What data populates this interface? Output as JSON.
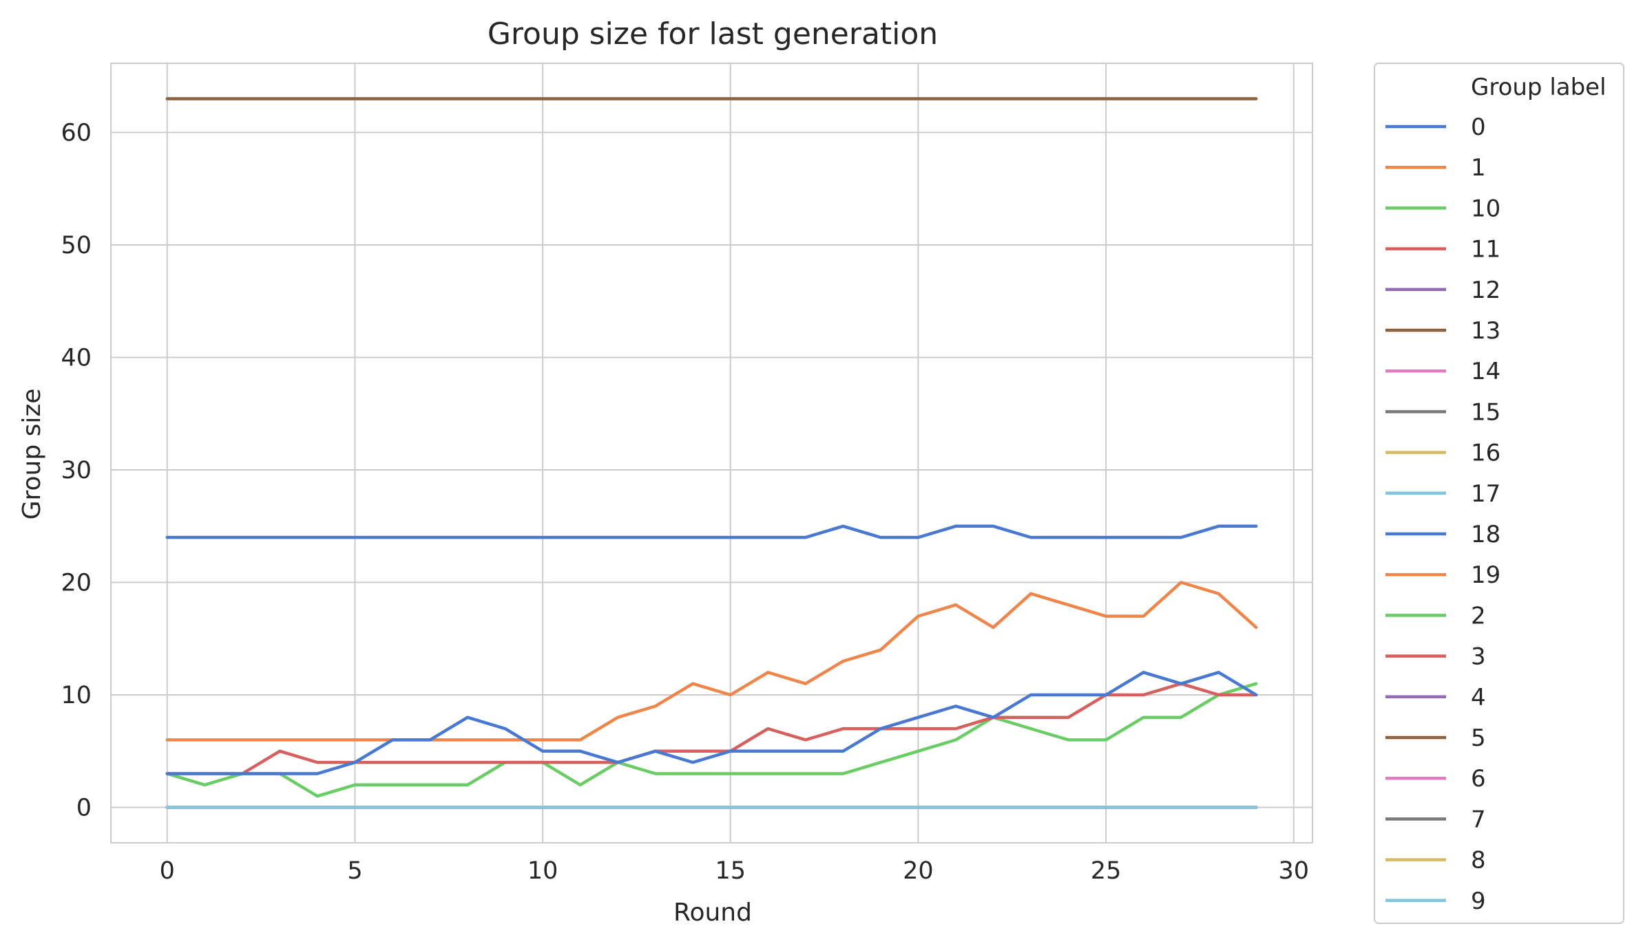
{
  "chart_data": {
    "type": "line",
    "title": "Group size for last generation",
    "xlabel": "Round",
    "ylabel": "Group size",
    "xlim": [
      -1.5,
      30.5
    ],
    "ylim": [
      -3.15,
      66.15
    ],
    "xticks": [
      0,
      5,
      10,
      15,
      20,
      25,
      30
    ],
    "yticks": [
      0,
      10,
      20,
      30,
      40,
      50,
      60
    ],
    "grid": true,
    "legend_title": "Group label",
    "legend_position": "outside-right",
    "x": [
      0,
      1,
      2,
      3,
      4,
      5,
      6,
      7,
      8,
      9,
      10,
      11,
      12,
      13,
      14,
      15,
      16,
      17,
      18,
      19,
      20,
      21,
      22,
      23,
      24,
      25,
      26,
      27,
      28,
      29
    ],
    "series": [
      {
        "name": "0",
        "color": "#4878d0",
        "values": [
          24,
          24,
          24,
          24,
          24,
          24,
          24,
          24,
          24,
          24,
          24,
          24,
          24,
          24,
          24,
          24,
          24,
          24,
          25,
          24,
          24,
          25,
          25,
          24,
          24,
          24,
          24,
          24,
          25,
          25
        ]
      },
      {
        "name": "1",
        "color": "#ee854a",
        "values": [
          6,
          6,
          6,
          6,
          6,
          6,
          6,
          6,
          6,
          6,
          6,
          6,
          8,
          9,
          11,
          10,
          12,
          11,
          13,
          14,
          17,
          18,
          16,
          19,
          18,
          17,
          17,
          20,
          19,
          16
        ]
      },
      {
        "name": "10",
        "color": "#6acc64",
        "values": [
          3,
          2,
          3,
          3,
          1,
          2,
          2,
          2,
          2,
          4,
          4,
          2,
          4,
          3,
          3,
          3,
          3,
          3,
          3,
          4,
          5,
          6,
          8,
          7,
          6,
          6,
          8,
          8,
          10,
          11
        ]
      },
      {
        "name": "11",
        "color": "#d65f5f",
        "values": [
          3,
          3,
          3,
          5,
          4,
          4,
          4,
          4,
          4,
          4,
          4,
          4,
          4,
          5,
          5,
          5,
          7,
          6,
          7,
          7,
          7,
          7,
          8,
          8,
          8,
          10,
          10,
          11,
          10,
          10
        ]
      },
      {
        "name": "12",
        "color": "#956cb4",
        "values": [
          0,
          0,
          0,
          0,
          0,
          0,
          0,
          0,
          0,
          0,
          0,
          0,
          0,
          0,
          0,
          0,
          0,
          0,
          0,
          0,
          0,
          0,
          0,
          0,
          0,
          0,
          0,
          0,
          0,
          0
        ]
      },
      {
        "name": "13",
        "color": "#8c613c",
        "values": [
          63,
          63,
          63,
          63,
          63,
          63,
          63,
          63,
          63,
          63,
          63,
          63,
          63,
          63,
          63,
          63,
          63,
          63,
          63,
          63,
          63,
          63,
          63,
          63,
          63,
          63,
          63,
          63,
          63,
          63
        ]
      },
      {
        "name": "14",
        "color": "#dc7ec0",
        "values": [
          0,
          0,
          0,
          0,
          0,
          0,
          0,
          0,
          0,
          0,
          0,
          0,
          0,
          0,
          0,
          0,
          0,
          0,
          0,
          0,
          0,
          0,
          0,
          0,
          0,
          0,
          0,
          0,
          0,
          0
        ]
      },
      {
        "name": "15",
        "color": "#797979",
        "values": [
          0,
          0,
          0,
          0,
          0,
          0,
          0,
          0,
          0,
          0,
          0,
          0,
          0,
          0,
          0,
          0,
          0,
          0,
          0,
          0,
          0,
          0,
          0,
          0,
          0,
          0,
          0,
          0,
          0,
          0
        ]
      },
      {
        "name": "16",
        "color": "#d5bb67",
        "values": [
          0,
          0,
          0,
          0,
          0,
          0,
          0,
          0,
          0,
          0,
          0,
          0,
          0,
          0,
          0,
          0,
          0,
          0,
          0,
          0,
          0,
          0,
          0,
          0,
          0,
          0,
          0,
          0,
          0,
          0
        ]
      },
      {
        "name": "17",
        "color": "#82c6e2",
        "values": [
          0,
          0,
          0,
          0,
          0,
          0,
          0,
          0,
          0,
          0,
          0,
          0,
          0,
          0,
          0,
          0,
          0,
          0,
          0,
          0,
          0,
          0,
          0,
          0,
          0,
          0,
          0,
          0,
          0,
          0
        ]
      },
      {
        "name": "18",
        "color": "#4878d0",
        "values": [
          3,
          3,
          3,
          3,
          3,
          4,
          6,
          6,
          8,
          7,
          5,
          5,
          4,
          5,
          4,
          5,
          5,
          5,
          5,
          7,
          8,
          9,
          8,
          10,
          10,
          10,
          12,
          11,
          12,
          10
        ]
      },
      {
        "name": "19",
        "color": "#ee854a",
        "values": [
          0,
          0,
          0,
          0,
          0,
          0,
          0,
          0,
          0,
          0,
          0,
          0,
          0,
          0,
          0,
          0,
          0,
          0,
          0,
          0,
          0,
          0,
          0,
          0,
          0,
          0,
          0,
          0,
          0,
          0
        ]
      },
      {
        "name": "2",
        "color": "#6acc64",
        "values": [
          0,
          0,
          0,
          0,
          0,
          0,
          0,
          0,
          0,
          0,
          0,
          0,
          0,
          0,
          0,
          0,
          0,
          0,
          0,
          0,
          0,
          0,
          0,
          0,
          0,
          0,
          0,
          0,
          0,
          0
        ]
      },
      {
        "name": "3",
        "color": "#d65f5f",
        "values": [
          0,
          0,
          0,
          0,
          0,
          0,
          0,
          0,
          0,
          0,
          0,
          0,
          0,
          0,
          0,
          0,
          0,
          0,
          0,
          0,
          0,
          0,
          0,
          0,
          0,
          0,
          0,
          0,
          0,
          0
        ]
      },
      {
        "name": "4",
        "color": "#956cb4",
        "values": [
          0,
          0,
          0,
          0,
          0,
          0,
          0,
          0,
          0,
          0,
          0,
          0,
          0,
          0,
          0,
          0,
          0,
          0,
          0,
          0,
          0,
          0,
          0,
          0,
          0,
          0,
          0,
          0,
          0,
          0
        ]
      },
      {
        "name": "5",
        "color": "#8c613c",
        "values": [
          0,
          0,
          0,
          0,
          0,
          0,
          0,
          0,
          0,
          0,
          0,
          0,
          0,
          0,
          0,
          0,
          0,
          0,
          0,
          0,
          0,
          0,
          0,
          0,
          0,
          0,
          0,
          0,
          0,
          0
        ]
      },
      {
        "name": "6",
        "color": "#dc7ec0",
        "values": [
          0,
          0,
          0,
          0,
          0,
          0,
          0,
          0,
          0,
          0,
          0,
          0,
          0,
          0,
          0,
          0,
          0,
          0,
          0,
          0,
          0,
          0,
          0,
          0,
          0,
          0,
          0,
          0,
          0,
          0
        ]
      },
      {
        "name": "7",
        "color": "#797979",
        "values": [
          0,
          0,
          0,
          0,
          0,
          0,
          0,
          0,
          0,
          0,
          0,
          0,
          0,
          0,
          0,
          0,
          0,
          0,
          0,
          0,
          0,
          0,
          0,
          0,
          0,
          0,
          0,
          0,
          0,
          0
        ]
      },
      {
        "name": "8",
        "color": "#d5bb67",
        "values": [
          0,
          0,
          0,
          0,
          0,
          0,
          0,
          0,
          0,
          0,
          0,
          0,
          0,
          0,
          0,
          0,
          0,
          0,
          0,
          0,
          0,
          0,
          0,
          0,
          0,
          0,
          0,
          0,
          0,
          0
        ]
      },
      {
        "name": "9",
        "color": "#82c6e2",
        "values": [
          0,
          0,
          0,
          0,
          0,
          0,
          0,
          0,
          0,
          0,
          0,
          0,
          0,
          0,
          0,
          0,
          0,
          0,
          0,
          0,
          0,
          0,
          0,
          0,
          0,
          0,
          0,
          0,
          0,
          0
        ]
      }
    ],
    "colors": {
      "grid": "#cccccc",
      "axes_edge": "#cccccc",
      "text": "#262626",
      "legend_frame": "#cccccc"
    }
  }
}
